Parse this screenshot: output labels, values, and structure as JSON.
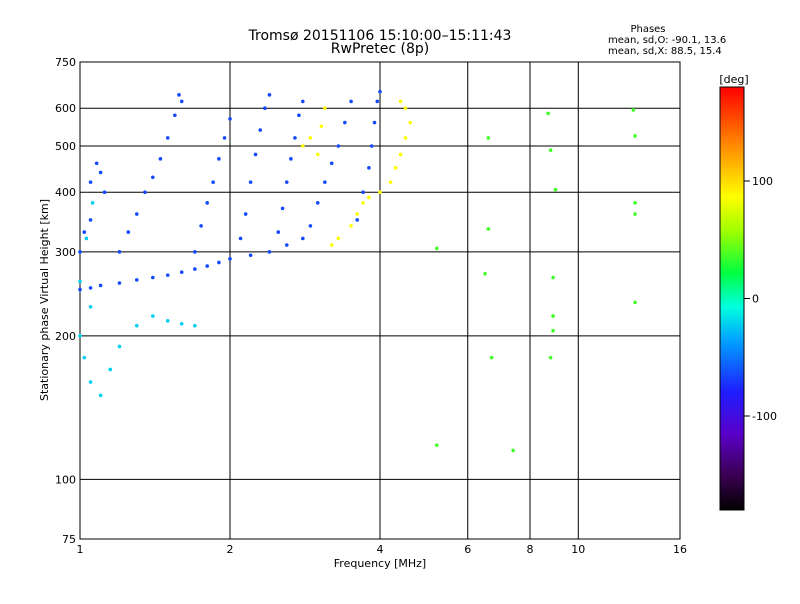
{
  "chart_data": {
    "type": "scatter",
    "title": "Tromsø 20151106 15:10:00–15:11:43",
    "subtitle": "RwPretec (8p)",
    "xlabel": "Frequency [MHz]",
    "ylabel": "Stationary phase Virtual Height [km]",
    "xscale": "log",
    "yscale": "log",
    "xlim": [
      1,
      16
    ],
    "ylim": [
      75,
      750
    ],
    "xticks": [
      1,
      2,
      4,
      6,
      8,
      10,
      16
    ],
    "yticks": [
      75,
      100,
      200,
      300,
      400,
      500,
      600,
      750
    ],
    "grid": true,
    "stats": {
      "heading": "Phases",
      "line_o": "mean, sd,O: -90.1, 13.6",
      "line_x": "mean, sd,X: 88.5, 15.4"
    },
    "colorbar": {
      "label": "[deg]",
      "ticks": [
        100,
        0,
        -100
      ],
      "range": [
        -180,
        180
      ]
    },
    "traces": [
      {
        "trace": "O-mode ionogram (blue)",
        "phase": -100,
        "points": [
          [
            1.0,
            250
          ],
          [
            1.05,
            252
          ],
          [
            1.1,
            255
          ],
          [
            1.2,
            258
          ],
          [
            1.3,
            262
          ],
          [
            1.4,
            265
          ],
          [
            1.5,
            268
          ],
          [
            1.6,
            272
          ],
          [
            1.7,
            276
          ],
          [
            1.8,
            280
          ],
          [
            1.9,
            285
          ],
          [
            2.0,
            290
          ],
          [
            2.2,
            295
          ],
          [
            2.4,
            300
          ],
          [
            2.6,
            310
          ],
          [
            2.8,
            320
          ],
          [
            1.0,
            300
          ],
          [
            1.02,
            330
          ],
          [
            1.05,
            350
          ],
          [
            1.05,
            420
          ],
          [
            1.1,
            440
          ],
          [
            1.08,
            460
          ],
          [
            1.12,
            400
          ],
          [
            1.2,
            300
          ],
          [
            1.25,
            330
          ],
          [
            1.3,
            360
          ],
          [
            1.35,
            400
          ],
          [
            1.4,
            430
          ],
          [
            1.45,
            470
          ],
          [
            1.5,
            520
          ],
          [
            1.55,
            580
          ],
          [
            1.6,
            620
          ],
          [
            1.58,
            640
          ],
          [
            1.7,
            300
          ],
          [
            1.75,
            340
          ],
          [
            1.8,
            380
          ],
          [
            1.85,
            420
          ],
          [
            1.9,
            470
          ],
          [
            1.95,
            520
          ],
          [
            2.0,
            570
          ],
          [
            2.1,
            320
          ],
          [
            2.15,
            360
          ],
          [
            2.2,
            420
          ],
          [
            2.25,
            480
          ],
          [
            2.3,
            540
          ],
          [
            2.35,
            600
          ],
          [
            2.4,
            640
          ],
          [
            2.5,
            330
          ],
          [
            2.55,
            370
          ],
          [
            2.6,
            420
          ],
          [
            2.65,
            470
          ],
          [
            2.7,
            520
          ],
          [
            2.75,
            580
          ],
          [
            2.8,
            620
          ],
          [
            2.9,
            340
          ],
          [
            3.0,
            380
          ],
          [
            3.1,
            420
          ],
          [
            3.2,
            460
          ],
          [
            3.3,
            500
          ],
          [
            3.4,
            560
          ],
          [
            3.5,
            620
          ],
          [
            3.6,
            350
          ],
          [
            3.7,
            400
          ],
          [
            3.8,
            450
          ],
          [
            3.85,
            500
          ],
          [
            3.9,
            560
          ],
          [
            3.95,
            620
          ],
          [
            4.0,
            650
          ]
        ]
      },
      {
        "trace": "lower echoes (cyan)",
        "phase": -60,
        "points": [
          [
            1.0,
            200
          ],
          [
            1.02,
            180
          ],
          [
            1.05,
            160
          ],
          [
            1.1,
            150
          ],
          [
            1.15,
            170
          ],
          [
            1.2,
            190
          ],
          [
            1.3,
            210
          ],
          [
            1.4,
            220
          ],
          [
            1.5,
            215
          ],
          [
            1.6,
            212
          ],
          [
            1.7,
            210
          ],
          [
            1.05,
            230
          ],
          [
            1.0,
            260
          ],
          [
            1.03,
            320
          ],
          [
            1.06,
            380
          ]
        ]
      },
      {
        "trace": "X-mode trace (yellow-orange)",
        "phase": 100,
        "points": [
          [
            2.8,
            500
          ],
          [
            2.9,
            520
          ],
          [
            3.0,
            480
          ],
          [
            3.05,
            550
          ],
          [
            3.1,
            600
          ],
          [
            3.2,
            310
          ],
          [
            3.3,
            320
          ],
          [
            3.5,
            340
          ],
          [
            3.6,
            360
          ],
          [
            3.7,
            380
          ],
          [
            3.8,
            390
          ],
          [
            4.0,
            400
          ],
          [
            4.2,
            420
          ],
          [
            4.3,
            450
          ],
          [
            4.4,
            480
          ],
          [
            4.5,
            520
          ],
          [
            4.6,
            560
          ],
          [
            4.5,
            600
          ],
          [
            4.4,
            620
          ]
        ]
      },
      {
        "trace": "isolated points",
        "phase": 20,
        "points": [
          [
            5.2,
            305
          ],
          [
            5.2,
            118
          ],
          [
            6.5,
            270
          ],
          [
            6.6,
            335
          ],
          [
            6.7,
            180
          ],
          [
            7.4,
            115
          ],
          [
            6.6,
            520
          ],
          [
            8.7,
            585
          ],
          [
            8.8,
            490
          ],
          [
            8.8,
            180
          ],
          [
            8.9,
            265
          ],
          [
            8.9,
            220
          ],
          [
            8.9,
            205
          ],
          [
            9.0,
            405
          ],
          [
            12.9,
            595
          ],
          [
            13.0,
            525
          ],
          [
            13.0,
            380
          ],
          [
            13.0,
            360
          ],
          [
            13.0,
            235
          ]
        ]
      }
    ]
  }
}
